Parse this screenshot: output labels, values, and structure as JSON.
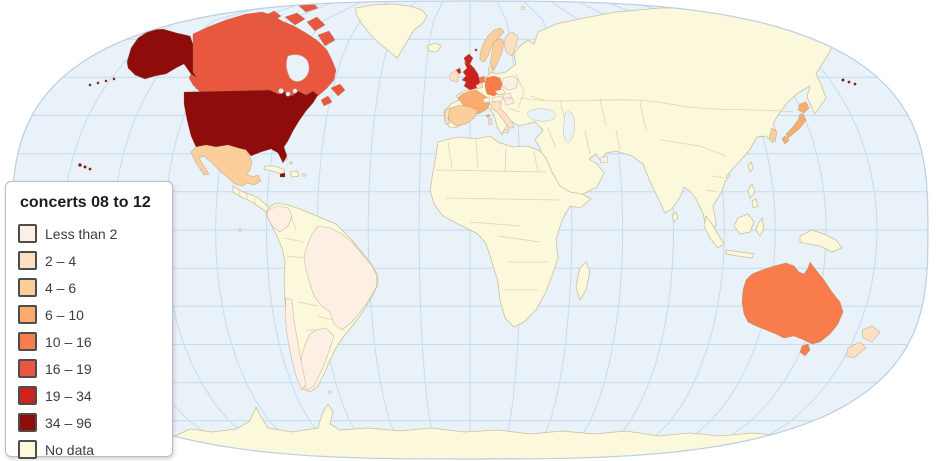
{
  "legend": {
    "title": "concerts 08 to 12",
    "items": [
      {
        "label": "Less than 2",
        "color": "#FDEFE3"
      },
      {
        "label": "2 – 4",
        "color": "#FCE0C0"
      },
      {
        "label": "4 – 6",
        "color": "#FBCE9C"
      },
      {
        "label": "6 – 10",
        "color": "#FAAC6F"
      },
      {
        "label": "10 – 16",
        "color": "#F97C4C"
      },
      {
        "label": "16 – 19",
        "color": "#E9573E"
      },
      {
        "label": "19 – 34",
        "color": "#CC231E"
      },
      {
        "label": "34 – 96",
        "color": "#8E0D0B"
      },
      {
        "label": "No data",
        "color": "#FBF8DC"
      }
    ]
  },
  "map": {
    "ocean_color": "#E9F1F9",
    "graticule_color": "#C6DCEE",
    "outline_color": "#B9CFE3",
    "land_border_color": "#C9C29E",
    "inner_border_color": "#DCD6B4",
    "country_values": {
      "United States": "34 – 96",
      "Jamaica": "34 – 96",
      "Canada": "16 – 19",
      "United Kingdom": "19 – 34",
      "Australia": "10 – 16",
      "Germany": "10 – 16",
      "Netherlands": "10 – 16",
      "France": "6 – 10",
      "Japan": "6 – 10",
      "Norway": "4 – 6",
      "Sweden": "4 – 6",
      "Spain": "4 – 6",
      "Mexico": "4 – 6",
      "South Korea": "4 – 6",
      "Finland": "2 – 4",
      "Denmark": "2 – 4",
      "Ireland": "2 – 4",
      "Italy": "2 – 4",
      "Belgium": "2 – 4",
      "Portugal": "2 – 4",
      "New Zealand": "2 – 4",
      "Poland": "Less than 2",
      "Czech Republic": "Less than 2",
      "Austria": "Less than 2",
      "Switzerland": "Less than 2",
      "Hungary": "Less than 2",
      "Slovakia": "Less than 2",
      "Brazil": "Less than 2",
      "Argentina": "Less than 2",
      "Chile": "Less than 2",
      "Colombia": "Less than 2",
      "United Arab Emirates": "Less than 2"
    }
  }
}
